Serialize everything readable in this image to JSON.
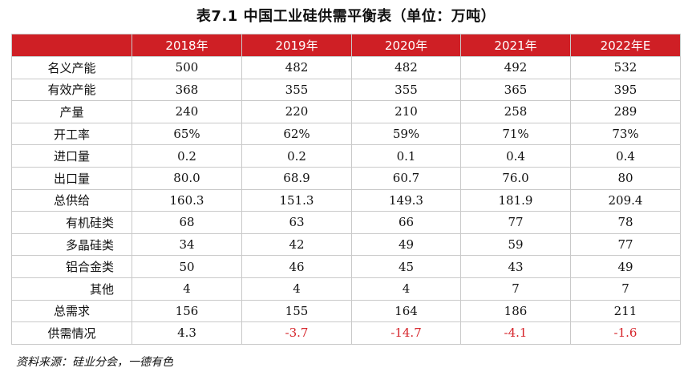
{
  "title": "表7.1 中国工业硅供需平衡表（单位：万吨）",
  "table": {
    "years": [
      "2018年",
      "2019年",
      "2020年",
      "2021年",
      "2022年E"
    ],
    "rows": [
      {
        "label": "名义产能",
        "values": [
          "500",
          "482",
          "482",
          "492",
          "532"
        ]
      },
      {
        "label": "有效产能",
        "values": [
          "368",
          "355",
          "355",
          "365",
          "395"
        ]
      },
      {
        "label": "产量",
        "values": [
          "240",
          "220",
          "210",
          "258",
          "289"
        ]
      },
      {
        "label": "开工率",
        "values": [
          "65%",
          "62%",
          "59%",
          "71%",
          "73%"
        ]
      },
      {
        "label": "进口量",
        "values": [
          "0.2",
          "0.2",
          "0.1",
          "0.4",
          "0.4"
        ]
      },
      {
        "label": "出口量",
        "values": [
          "80.0",
          "68.9",
          "60.7",
          "76.0",
          "80"
        ]
      },
      {
        "label": "总供给",
        "values": [
          "160.3",
          "151.3",
          "149.3",
          "181.9",
          "209.4"
        ]
      },
      {
        "label": "有机硅类",
        "values": [
          "68",
          "63",
          "66",
          "77",
          "78"
        ],
        "sub": true
      },
      {
        "label": "多晶硅类",
        "values": [
          "34",
          "42",
          "49",
          "59",
          "77"
        ],
        "sub": true
      },
      {
        "label": "铝合金类",
        "values": [
          "50",
          "46",
          "45",
          "43",
          "49"
        ],
        "sub": true
      },
      {
        "label": "其他",
        "values": [
          "4",
          "4",
          "4",
          "7",
          "7"
        ],
        "sub": true
      },
      {
        "label": "总需求",
        "values": [
          "156",
          "155",
          "164",
          "186",
          "211"
        ]
      },
      {
        "label": "供需情况",
        "values": [
          "4.3",
          "-3.7",
          "-14.7",
          "-4.1",
          "-1.6"
        ]
      }
    ]
  },
  "source": "资料来源：硅业分会，一德有色",
  "colors": {
    "header_bg": "#cf1f25",
    "negative": "#d6242a"
  }
}
